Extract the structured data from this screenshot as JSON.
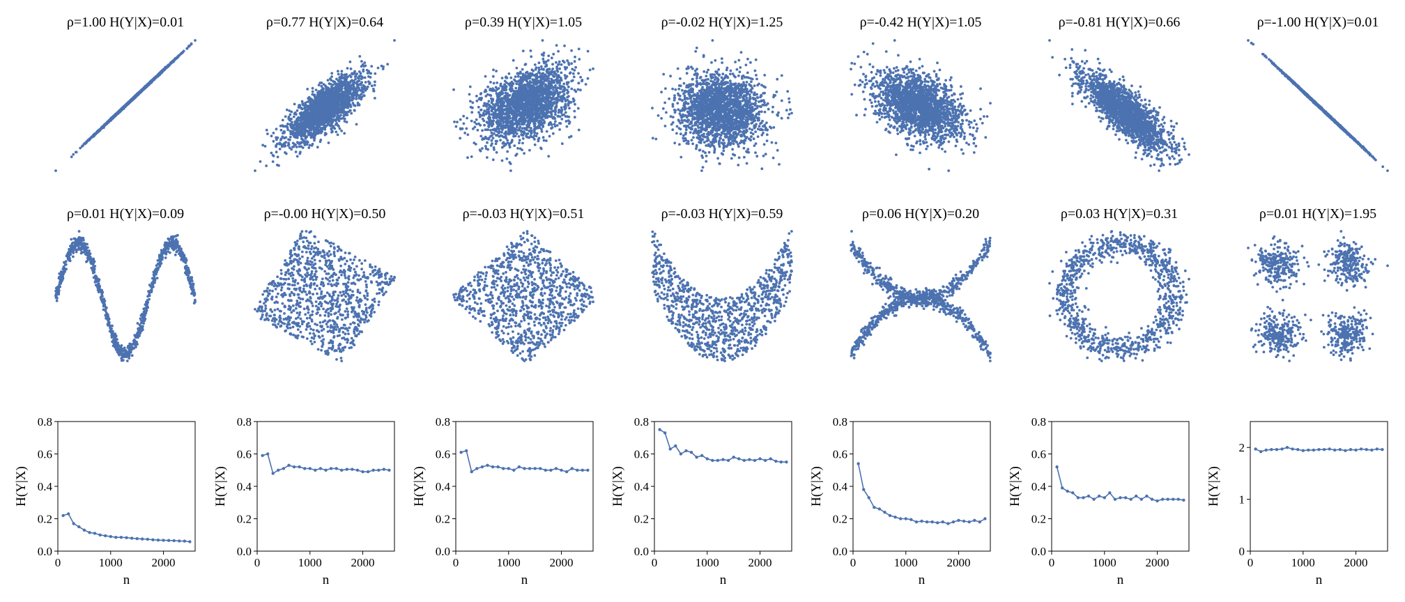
{
  "theme": {
    "point_color": "#4c72b0",
    "axis_color": "#000000"
  },
  "chart_data": [
    {
      "type": "scatter",
      "title": "ρ=1.00  H(Y|X)=0.01",
      "pattern": "line_positive",
      "n_points": 2000
    },
    {
      "type": "scatter",
      "title": "ρ=0.77  H(Y|X)=0.64",
      "pattern": "gaussian",
      "rho": 0.77,
      "n_points": 2000
    },
    {
      "type": "scatter",
      "title": "ρ=0.39  H(Y|X)=1.05",
      "pattern": "gaussian",
      "rho": 0.39,
      "n_points": 2000
    },
    {
      "type": "scatter",
      "title": "ρ=-0.02  H(Y|X)=1.25",
      "pattern": "gaussian",
      "rho": -0.02,
      "n_points": 2000
    },
    {
      "type": "scatter",
      "title": "ρ=-0.42  H(Y|X)=1.05",
      "pattern": "gaussian",
      "rho": -0.42,
      "n_points": 2000
    },
    {
      "type": "scatter",
      "title": "ρ=-0.81  H(Y|X)=0.66",
      "pattern": "gaussian",
      "rho": -0.81,
      "n_points": 2000
    },
    {
      "type": "scatter",
      "title": "ρ=-1.00  H(Y|X)=0.01",
      "pattern": "line_negative",
      "n_points": 2000
    },
    {
      "type": "scatter",
      "title": "ρ=0.01  H(Y|X)=0.09",
      "pattern": "wave",
      "n_points": 1000
    },
    {
      "type": "scatter",
      "title": "ρ=-0.00  H(Y|X)=0.50",
      "pattern": "rotated_square",
      "angle_deg": -30,
      "n_points": 1000
    },
    {
      "type": "scatter",
      "title": "ρ=-0.03  H(Y|X)=0.51",
      "pattern": "rotated_square",
      "angle_deg": -45,
      "n_points": 1000
    },
    {
      "type": "scatter",
      "title": "ρ=-0.03  H(Y|X)=0.59",
      "pattern": "parabola",
      "n_points": 1000
    },
    {
      "type": "scatter",
      "title": "ρ=0.06  H(Y|X)=0.20",
      "pattern": "cross_parabolas",
      "n_points": 1000
    },
    {
      "type": "scatter",
      "title": "ρ=0.03  H(Y|X)=0.31",
      "pattern": "ring",
      "n_points": 1000
    },
    {
      "type": "scatter",
      "title": "ρ=0.01  H(Y|X)=1.95",
      "pattern": "four_clusters",
      "n_points": 1000
    },
    {
      "type": "line",
      "xlabel": "n",
      "ylabel": "H(Y|X)",
      "xlim": [
        0,
        2600
      ],
      "ylim": [
        0,
        0.8
      ],
      "xticks": [
        0,
        1000,
        2000
      ],
      "yticks": [
        0.0,
        0.2,
        0.4,
        0.6,
        0.8
      ],
      "xticklabels": [
        "0",
        "1000",
        "2000"
      ],
      "yticklabels": [
        "0.0",
        "0.2",
        "0.4",
        "0.6",
        "0.8"
      ],
      "x": [
        100,
        200,
        300,
        400,
        500,
        600,
        700,
        800,
        900,
        1000,
        1100,
        1200,
        1300,
        1400,
        1500,
        1600,
        1700,
        1800,
        1900,
        2000,
        2100,
        2200,
        2300,
        2400,
        2500
      ],
      "y": [
        0.22,
        0.23,
        0.17,
        0.15,
        0.13,
        0.115,
        0.11,
        0.1,
        0.095,
        0.09,
        0.085,
        0.085,
        0.083,
        0.08,
        0.077,
        0.075,
        0.073,
        0.07,
        0.068,
        0.067,
        0.066,
        0.065,
        0.063,
        0.062,
        0.058
      ]
    },
    {
      "type": "line",
      "xlabel": "n",
      "ylabel": "H(Y|X)",
      "xlim": [
        0,
        2600
      ],
      "ylim": [
        0,
        0.8
      ],
      "xticks": [
        0,
        1000,
        2000
      ],
      "yticks": [
        0.0,
        0.2,
        0.4,
        0.6,
        0.8
      ],
      "xticklabels": [
        "0",
        "1000",
        "2000"
      ],
      "yticklabels": [
        "0.0",
        "0.2",
        "0.4",
        "0.6",
        "0.8"
      ],
      "x": [
        100,
        200,
        300,
        400,
        500,
        600,
        700,
        800,
        900,
        1000,
        1100,
        1200,
        1300,
        1400,
        1500,
        1600,
        1700,
        1800,
        1900,
        2000,
        2100,
        2200,
        2300,
        2400,
        2500
      ],
      "y": [
        0.59,
        0.6,
        0.48,
        0.5,
        0.51,
        0.53,
        0.52,
        0.52,
        0.51,
        0.51,
        0.5,
        0.51,
        0.5,
        0.51,
        0.51,
        0.5,
        0.505,
        0.505,
        0.5,
        0.49,
        0.49,
        0.5,
        0.5,
        0.505,
        0.5
      ]
    },
    {
      "type": "line",
      "xlabel": "n",
      "ylabel": "H(Y|X)",
      "xlim": [
        0,
        2600
      ],
      "ylim": [
        0,
        0.8
      ],
      "xticks": [
        0,
        1000,
        2000
      ],
      "yticks": [
        0.0,
        0.2,
        0.4,
        0.6,
        0.8
      ],
      "xticklabels": [
        "0",
        "1000",
        "2000"
      ],
      "yticklabels": [
        "0.0",
        "0.2",
        "0.4",
        "0.6",
        "0.8"
      ],
      "x": [
        100,
        200,
        300,
        400,
        500,
        600,
        700,
        800,
        900,
        1000,
        1100,
        1200,
        1300,
        1400,
        1500,
        1600,
        1700,
        1800,
        1900,
        2000,
        2100,
        2200,
        2300,
        2400,
        2500
      ],
      "y": [
        0.61,
        0.62,
        0.49,
        0.51,
        0.52,
        0.53,
        0.52,
        0.52,
        0.51,
        0.51,
        0.5,
        0.52,
        0.51,
        0.51,
        0.51,
        0.51,
        0.5,
        0.5,
        0.51,
        0.5,
        0.49,
        0.51,
        0.5,
        0.5,
        0.5
      ]
    },
    {
      "type": "line",
      "xlabel": "n",
      "ylabel": "H(Y|X)",
      "xlim": [
        0,
        2600
      ],
      "ylim": [
        0,
        0.8
      ],
      "xticks": [
        0,
        1000,
        2000
      ],
      "yticks": [
        0.0,
        0.2,
        0.4,
        0.6,
        0.8
      ],
      "xticklabels": [
        "0",
        "1000",
        "2000"
      ],
      "yticklabels": [
        "0.0",
        "0.2",
        "0.4",
        "0.6",
        "0.8"
      ],
      "x": [
        100,
        200,
        300,
        400,
        500,
        600,
        700,
        800,
        900,
        1000,
        1100,
        1200,
        1300,
        1400,
        1500,
        1600,
        1700,
        1800,
        1900,
        2000,
        2100,
        2200,
        2300,
        2400,
        2500
      ],
      "y": [
        0.75,
        0.73,
        0.63,
        0.65,
        0.6,
        0.62,
        0.61,
        0.58,
        0.59,
        0.57,
        0.56,
        0.56,
        0.565,
        0.56,
        0.58,
        0.57,
        0.56,
        0.565,
        0.56,
        0.57,
        0.56,
        0.57,
        0.555,
        0.55,
        0.55
      ]
    },
    {
      "type": "line",
      "xlabel": "n",
      "ylabel": "H(Y|X)",
      "xlim": [
        0,
        2600
      ],
      "ylim": [
        0,
        0.8
      ],
      "xticks": [
        0,
        1000,
        2000
      ],
      "yticks": [
        0.0,
        0.2,
        0.4,
        0.6,
        0.8
      ],
      "xticklabels": [
        "0",
        "1000",
        "2000"
      ],
      "yticklabels": [
        "0.0",
        "0.2",
        "0.4",
        "0.6",
        "0.8"
      ],
      "x": [
        100,
        200,
        300,
        400,
        500,
        600,
        700,
        800,
        900,
        1000,
        1100,
        1200,
        1300,
        1400,
        1500,
        1600,
        1700,
        1800,
        1900,
        2000,
        2100,
        2200,
        2300,
        2400,
        2500
      ],
      "y": [
        0.54,
        0.38,
        0.33,
        0.27,
        0.26,
        0.24,
        0.22,
        0.21,
        0.2,
        0.2,
        0.195,
        0.18,
        0.185,
        0.18,
        0.18,
        0.175,
        0.18,
        0.17,
        0.18,
        0.19,
        0.185,
        0.18,
        0.19,
        0.18,
        0.2
      ]
    },
    {
      "type": "line",
      "xlabel": "n",
      "ylabel": "H(Y|X)",
      "xlim": [
        0,
        2600
      ],
      "ylim": [
        0,
        0.8
      ],
      "xticks": [
        0,
        1000,
        2000
      ],
      "yticks": [
        0.0,
        0.2,
        0.4,
        0.6,
        0.8
      ],
      "xticklabels": [
        "0",
        "1000",
        "2000"
      ],
      "yticklabels": [
        "0.0",
        "0.2",
        "0.4",
        "0.6",
        "0.8"
      ],
      "x": [
        100,
        200,
        300,
        400,
        500,
        600,
        700,
        800,
        900,
        1000,
        1100,
        1200,
        1300,
        1400,
        1500,
        1600,
        1700,
        1800,
        1900,
        2000,
        2100,
        2200,
        2300,
        2400,
        2500
      ],
      "y": [
        0.52,
        0.39,
        0.37,
        0.36,
        0.33,
        0.33,
        0.34,
        0.32,
        0.34,
        0.33,
        0.36,
        0.32,
        0.33,
        0.33,
        0.32,
        0.34,
        0.32,
        0.34,
        0.32,
        0.31,
        0.32,
        0.32,
        0.32,
        0.32,
        0.315
      ]
    },
    {
      "type": "line",
      "xlabel": "n",
      "ylabel": "H(Y|X)",
      "xlim": [
        0,
        2600
      ],
      "ylim": [
        0,
        2.5
      ],
      "xticks": [
        0,
        1000,
        2000
      ],
      "yticks": [
        0,
        1,
        2
      ],
      "xticklabels": [
        "0",
        "1000",
        "2000"
      ],
      "yticklabels": [
        "0",
        "1",
        "2"
      ],
      "x": [
        100,
        200,
        300,
        400,
        500,
        600,
        700,
        800,
        900,
        1000,
        1100,
        1200,
        1300,
        1400,
        1500,
        1600,
        1700,
        1800,
        1900,
        2000,
        2100,
        2200,
        2300,
        2400,
        2500
      ],
      "y": [
        1.97,
        1.92,
        1.95,
        1.96,
        1.96,
        1.97,
        2.0,
        1.97,
        1.96,
        1.94,
        1.95,
        1.95,
        1.96,
        1.96,
        1.97,
        1.95,
        1.96,
        1.94,
        1.96,
        1.95,
        1.97,
        1.96,
        1.95,
        1.97,
        1.96
      ]
    }
  ]
}
